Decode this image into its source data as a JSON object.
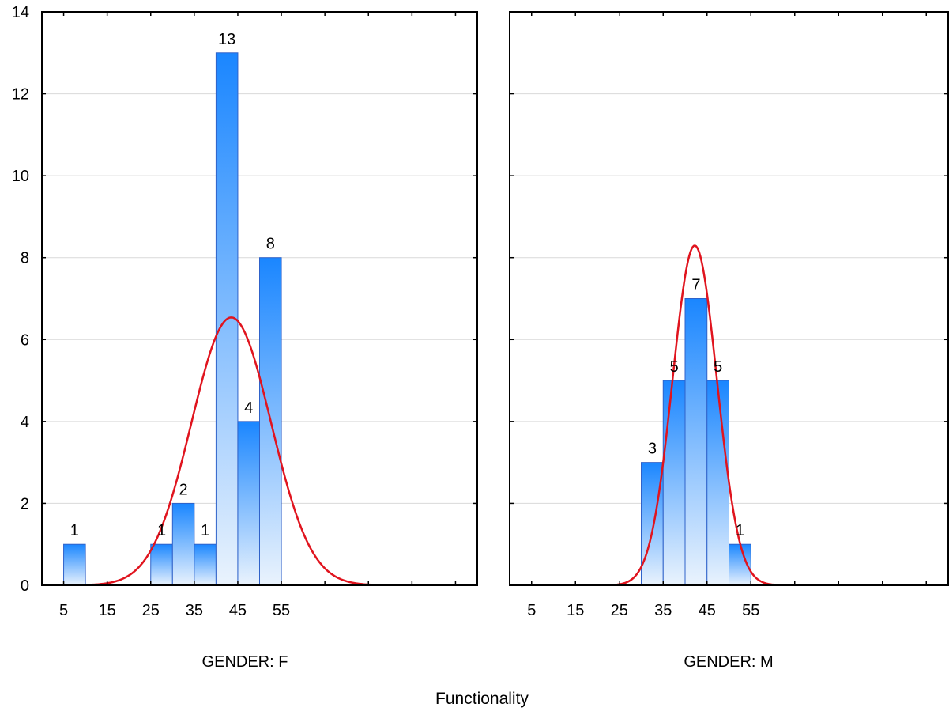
{
  "xlabel": "Functionality",
  "colors": {
    "bar_top": "#1a86ff",
    "bar_bottom": "#eaf3fd",
    "bar_stroke": "#2f62c9",
    "curve": "#e0141e",
    "grid": "#d9d9d9",
    "axis": "#000000"
  },
  "chart_data": [
    {
      "type": "bar",
      "title": "GENDER: F",
      "bin_width": 5,
      "xlim": [
        0,
        100
      ],
      "ylim": [
        0,
        14
      ],
      "yticks": [
        0,
        2,
        4,
        6,
        8,
        10,
        12,
        14
      ],
      "xticks": [
        5,
        15,
        25,
        35,
        45,
        55
      ],
      "grid": true,
      "bins": [
        {
          "start": 5,
          "end": 10,
          "value": 1,
          "label": "1"
        },
        {
          "start": 25,
          "end": 30,
          "value": 1,
          "label": "1"
        },
        {
          "start": 30,
          "end": 35,
          "value": 2,
          "label": "2"
        },
        {
          "start": 35,
          "end": 40,
          "value": 1,
          "label": "1"
        },
        {
          "start": 40,
          "end": 45,
          "value": 13,
          "label": "13"
        },
        {
          "start": 45,
          "end": 50,
          "value": 4,
          "label": "4"
        },
        {
          "start": 50,
          "end": 55,
          "value": 8,
          "label": "8"
        }
      ],
      "normal_fit": {
        "mean": 43.5,
        "sd": 9.15,
        "n": 30,
        "bin_width": 5
      }
    },
    {
      "type": "bar",
      "title": "GENDER: M",
      "bin_width": 5,
      "xlim": [
        0,
        100
      ],
      "ylim": [
        0,
        14
      ],
      "xticks": [
        5,
        15,
        25,
        35,
        45,
        55
      ],
      "grid": true,
      "bins": [
        {
          "start": 30,
          "end": 35,
          "value": 3,
          "label": "3"
        },
        {
          "start": 35,
          "end": 40,
          "value": 5,
          "label": "5"
        },
        {
          "start": 40,
          "end": 45,
          "value": 7,
          "label": "7"
        },
        {
          "start": 45,
          "end": 50,
          "value": 5,
          "label": "5"
        },
        {
          "start": 50,
          "end": 55,
          "value": 1,
          "label": "1"
        }
      ],
      "normal_fit": {
        "mean": 42.2,
        "sd": 5.05,
        "n": 21,
        "bin_width": 5
      }
    }
  ]
}
